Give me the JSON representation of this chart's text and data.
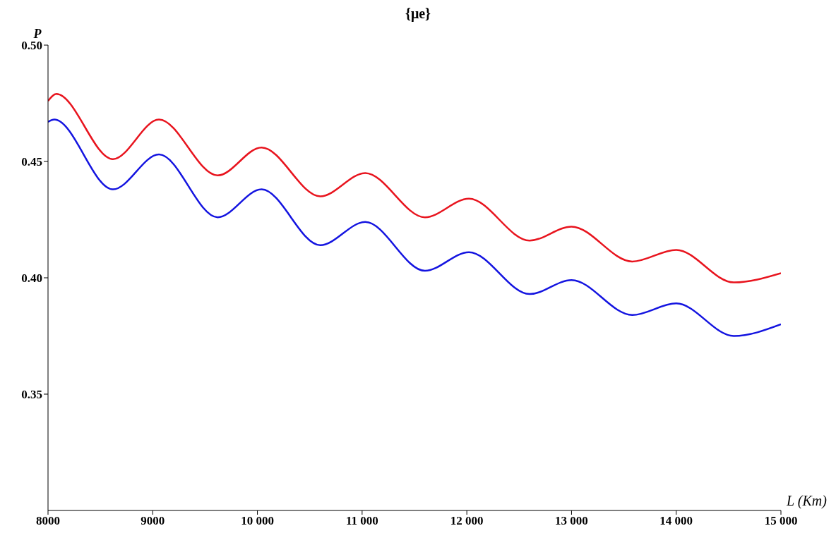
{
  "chart_data": {
    "type": "line",
    "title": "{μe}",
    "xlabel": "L (Km)",
    "ylabel": "P",
    "xlim": [
      8000,
      15000
    ],
    "xticks": [
      8000,
      9000,
      {
        "value": 10000,
        "label": "10 000"
      },
      {
        "value": 11000,
        "label": "11 000"
      },
      {
        "value": 12000,
        "label": "12 000"
      },
      {
        "value": 13000,
        "label": "13 000"
      },
      {
        "value": 14000,
        "label": "14 000"
      },
      {
        "value": 15000,
        "label": "15 000"
      }
    ],
    "ylim": [
      0.3,
      0.5
    ],
    "yticks": [
      {
        "value": 0.35,
        "label": "0.35"
      },
      {
        "value": 0.4,
        "label": "0.40"
      },
      {
        "value": 0.45,
        "label": "0.45"
      },
      {
        "value": 0.5,
        "label": "0.50"
      }
    ],
    "marker": "none",
    "line_style": "solid",
    "series": [
      {
        "color": "#e8141e",
        "x": [
          8000,
          8080,
          8620,
          9060,
          9620,
          10040,
          10600,
          11030,
          11600,
          12020,
          12600,
          13000,
          13580,
          14000,
          14550,
          15000
        ],
        "values": [
          0.476,
          0.479,
          0.451,
          0.468,
          0.444,
          0.456,
          0.435,
          0.445,
          0.426,
          0.434,
          0.416,
          0.422,
          0.407,
          0.412,
          0.398,
          0.402
        ]
      },
      {
        "color": "#1414e0",
        "x": [
          8000,
          8060,
          8620,
          9060,
          9620,
          10040,
          10600,
          11030,
          11600,
          12020,
          12600,
          13000,
          13580,
          14000,
          14550,
          15000
        ],
        "values": [
          0.467,
          0.468,
          0.438,
          0.453,
          0.426,
          0.438,
          0.414,
          0.424,
          0.403,
          0.411,
          0.393,
          0.399,
          0.384,
          0.389,
          0.375,
          0.38
        ]
      }
    ]
  }
}
